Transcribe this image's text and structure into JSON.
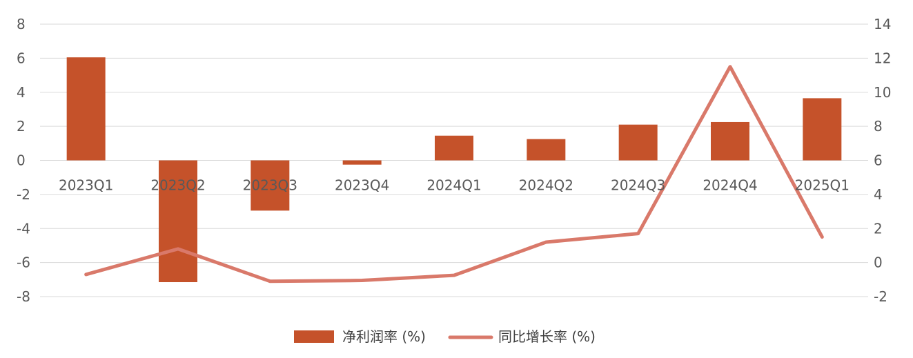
{
  "chart_data": {
    "type": "bar",
    "categories": [
      "2023Q1",
      "2023Q2",
      "2023Q3",
      "2023Q4",
      "2024Q1",
      "2024Q2",
      "2024Q3",
      "2024Q4",
      "2025Q1"
    ],
    "series": [
      {
        "name": "净利润率 (%)",
        "kind": "bar",
        "axis": "left",
        "color": "#c5522a",
        "values": [
          6.05,
          -7.15,
          -2.95,
          -0.25,
          1.45,
          1.25,
          2.1,
          2.25,
          3.65
        ]
      },
      {
        "name": "同比增长率 (%)",
        "kind": "line",
        "axis": "right",
        "color": "#d9796a",
        "values": [
          -0.7,
          0.8,
          -1.1,
          -1.05,
          -0.75,
          1.2,
          1.7,
          11.5,
          1.5
        ]
      }
    ],
    "y_left": {
      "ylim": [
        -8,
        8
      ],
      "ticks": [
        8,
        6,
        4,
        2,
        0,
        -2,
        -4,
        -6,
        -8
      ]
    },
    "y_right": {
      "ylim": [
        -2,
        14
      ],
      "ticks": [
        14,
        12,
        10,
        8,
        6,
        4,
        2,
        0,
        -2
      ]
    },
    "grid": true,
    "legend_position": "bottom"
  }
}
